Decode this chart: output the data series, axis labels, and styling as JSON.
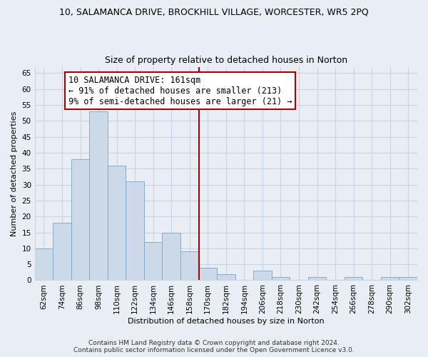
{
  "title": "10, SALAMANCA DRIVE, BROCKHILL VILLAGE, WORCESTER, WR5 2PQ",
  "subtitle": "Size of property relative to detached houses in Norton",
  "xlabel": "Distribution of detached houses by size in Norton",
  "ylabel": "Number of detached properties",
  "bar_color": "#ccd9e8",
  "bar_edge_color": "#88aacc",
  "bin_labels": [
    "62sqm",
    "74sqm",
    "86sqm",
    "98sqm",
    "110sqm",
    "122sqm",
    "134sqm",
    "146sqm",
    "158sqm",
    "170sqm",
    "182sqm",
    "194sqm",
    "206sqm",
    "218sqm",
    "230sqm",
    "242sqm",
    "254sqm",
    "266sqm",
    "278sqm",
    "290sqm",
    "302sqm"
  ],
  "bar_heights": [
    10,
    18,
    38,
    53,
    36,
    31,
    12,
    15,
    9,
    4,
    2,
    0,
    3,
    1,
    0,
    1,
    0,
    1,
    0,
    1,
    1
  ],
  "vline_color": "#aa0000",
  "ylim": [
    0,
    67
  ],
  "yticks": [
    0,
    5,
    10,
    15,
    20,
    25,
    30,
    35,
    40,
    45,
    50,
    55,
    60,
    65
  ],
  "annotation_title": "10 SALAMANCA DRIVE: 161sqm",
  "annotation_line1": "← 91% of detached houses are smaller (213)",
  "annotation_line2": "9% of semi-detached houses are larger (21) →",
  "footer1": "Contains HM Land Registry data © Crown copyright and database right 2024.",
  "footer2": "Contains public sector information licensed under the Open Government Licence v3.0.",
  "background_color": "#e8eef4",
  "grid_color": "#c8d4e0",
  "title_fontsize": 9,
  "subtitle_fontsize": 9,
  "axis_label_fontsize": 8,
  "tick_fontsize": 7.5,
  "footer_fontsize": 6.5,
  "ann_fontsize": 8.5
}
